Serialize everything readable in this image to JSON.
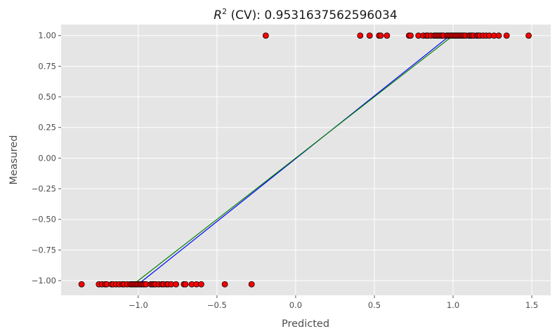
{
  "chart_data": {
    "type": "scatter",
    "title_prefix": "R",
    "title_superscript": "2",
    "title_suffix": " (CV): 0.9531637562596034",
    "xlabel": "Predicted",
    "ylabel": "Measured",
    "xlim": [
      -1.49,
      1.62
    ],
    "ylim": [
      -1.12,
      1.09
    ],
    "xticks": [
      {
        "value": -1.0,
        "label": "−1.0"
      },
      {
        "value": -0.5,
        "label": "−0.5"
      },
      {
        "value": 0.0,
        "label": "0.0"
      },
      {
        "value": 0.5,
        "label": "0.5"
      },
      {
        "value": 1.0,
        "label": "1.0"
      },
      {
        "value": 1.5,
        "label": "1.5"
      }
    ],
    "yticks": [
      {
        "value": 1.0,
        "label": "1.00"
      },
      {
        "value": 0.75,
        "label": "0.75"
      },
      {
        "value": 0.5,
        "label": "0.50"
      },
      {
        "value": 0.25,
        "label": "0.25"
      },
      {
        "value": 0.0,
        "label": "0.00"
      },
      {
        "value": -0.25,
        "label": "−0.25"
      },
      {
        "value": -0.5,
        "label": "−0.50"
      },
      {
        "value": -0.75,
        "label": "−0.75"
      },
      {
        "value": -1.0,
        "label": "−1.00"
      }
    ],
    "grid": true,
    "colors": {
      "background": "#e5e5e5",
      "grid": "#ffffff",
      "point_fill": "#ff0000",
      "point_edge": "#000000",
      "fit_line": "#0000ff",
      "identity_line": "#008000"
    },
    "series": [
      {
        "y": 1.0,
        "x": [
          -0.19,
          0.41,
          0.47,
          0.53,
          0.54,
          0.58,
          0.72,
          0.73,
          0.78,
          0.81,
          0.83,
          0.84,
          0.86,
          0.88,
          0.89,
          0.9,
          0.91,
          0.92,
          0.93,
          0.94,
          0.96,
          0.97,
          0.98,
          0.99,
          1.0,
          1.01,
          1.02,
          1.03,
          1.04,
          1.05,
          1.06,
          1.07,
          1.08,
          1.1,
          1.11,
          1.12,
          1.13,
          1.15,
          1.16,
          1.17,
          1.19,
          1.21,
          1.23,
          1.26,
          1.29,
          1.34,
          1.48
        ]
      },
      {
        "y": -1.03,
        "x": [
          -1.36,
          -1.25,
          -1.23,
          -1.21,
          -1.2,
          -1.17,
          -1.16,
          -1.14,
          -1.12,
          -1.1,
          -1.09,
          -1.07,
          -1.05,
          -1.04,
          -1.03,
          -1.02,
          -1.01,
          -1.0,
          -0.99,
          -0.98,
          -0.97,
          -0.96,
          -0.95,
          -0.92,
          -0.91,
          -0.9,
          -0.89,
          -0.87,
          -0.85,
          -0.84,
          -0.82,
          -0.81,
          -0.79,
          -0.76,
          -0.71,
          -0.7,
          -0.66,
          -0.63,
          -0.6,
          -0.45,
          -0.28
        ]
      }
    ],
    "lines": [
      {
        "name": "fit",
        "x": [
          -1.0,
          0.98
        ],
        "y": [
          -1.03,
          1.0
        ]
      },
      {
        "name": "identity",
        "x": [
          -1.03,
          1.0
        ],
        "y": [
          -1.03,
          1.0
        ]
      }
    ]
  }
}
